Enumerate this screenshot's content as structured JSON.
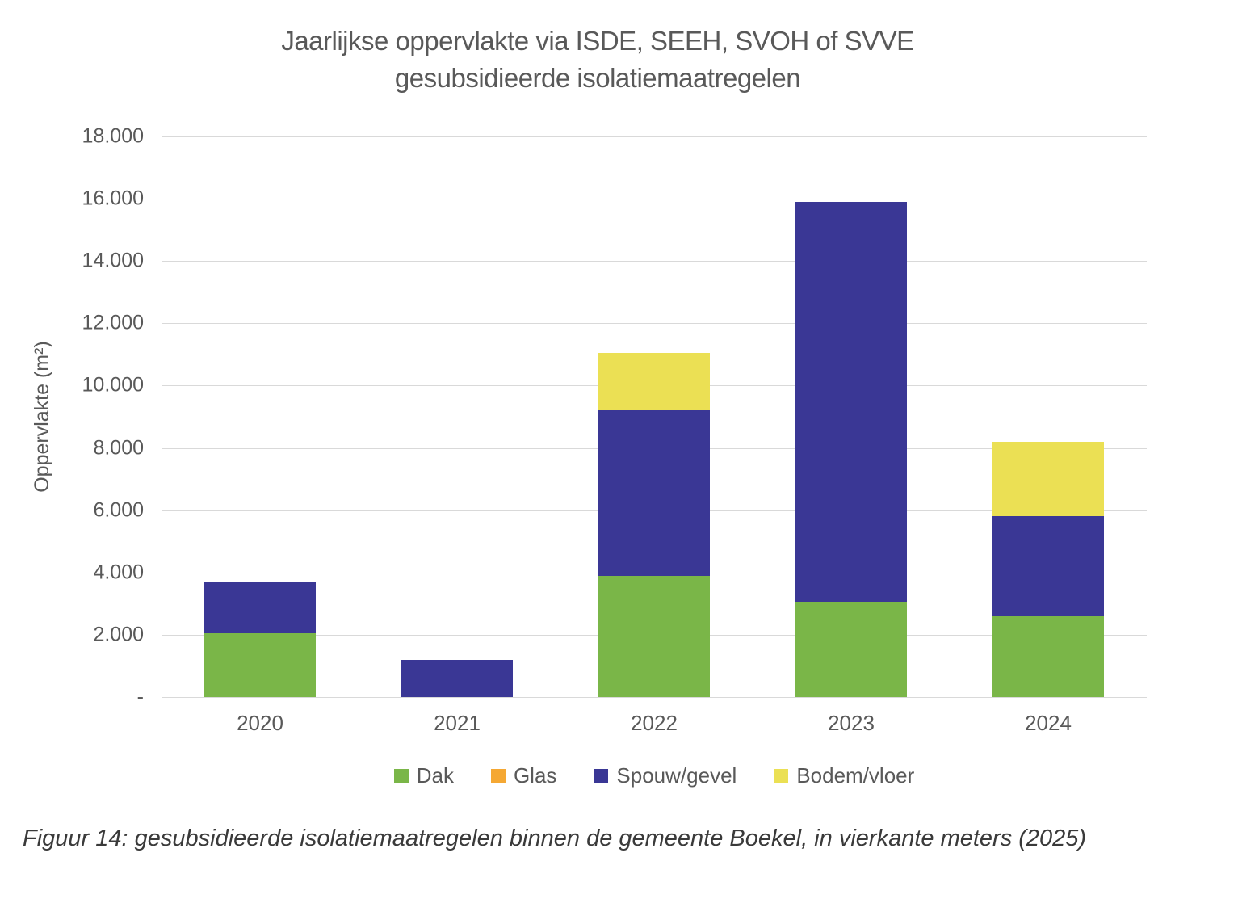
{
  "title": {
    "line1": "Jaarlijkse oppervlakte via ISDE, SEEH, SVOH of SVVE",
    "line2": "gesubsidieerde isolatiemaatregelen"
  },
  "caption": "Figuur 14: gesubsidieerde isolatiemaatregelen binnen de gemeente Boekel, in vierkante meters (2025)",
  "colors": {
    "dak": "#7AB648",
    "glas": "#F5A833",
    "spouw_gevel": "#3A3795",
    "bodem_vloer": "#EBE054",
    "gridline": "#D9D9D9",
    "text": "#595959"
  },
  "chart_data": {
    "type": "bar",
    "stacked": true,
    "title": "Jaarlijkse oppervlakte via ISDE, SEEH, SVOH of SVVE gesubsidieerde isolatiemaatregelen",
    "xlabel": "",
    "ylabel": "Oppervlakte (m²)",
    "categories": [
      "2020",
      "2021",
      "2022",
      "2023",
      "2024"
    ],
    "series": [
      {
        "name": "Dak",
        "color": "#7AB648",
        "values": [
          2050,
          0,
          3900,
          3050,
          2600
        ]
      },
      {
        "name": "Glas",
        "color": "#F5A833",
        "values": [
          0,
          0,
          0,
          0,
          0
        ]
      },
      {
        "name": "Spouw/gevel",
        "color": "#3A3795",
        "values": [
          1650,
          1200,
          5300,
          12850,
          3200
        ]
      },
      {
        "name": "Bodem/vloer",
        "color": "#EBE054",
        "values": [
          0,
          0,
          1850,
          0,
          2400
        ]
      }
    ],
    "totals": [
      3700,
      1200,
      11050,
      15900,
      8200
    ],
    "ylim": [
      0,
      18000
    ],
    "y_tick_step": 2000,
    "y_tick_labels": [
      "18.000",
      "16.000",
      "14.000",
      "12.000",
      "10.000",
      "8.000",
      "6.000",
      "4.000",
      "2.000",
      "-"
    ],
    "grid": true,
    "legend_position": "bottom"
  }
}
